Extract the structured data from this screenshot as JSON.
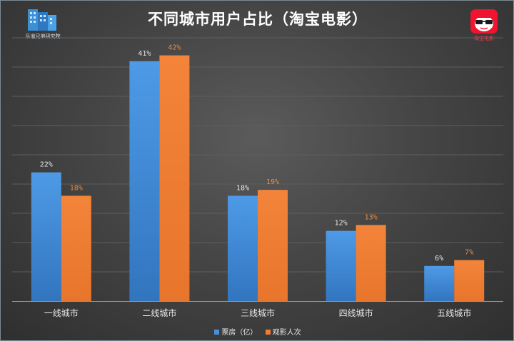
{
  "colors": {
    "series_blue": "#4a90d9",
    "series_orange": "#ef7f35",
    "label_light": "#e6e6e6",
    "label_orange": "#f08a3c"
  },
  "logo_left": {
    "icon": "building-logo-icon",
    "text": "乐道兄弟研究院"
  },
  "logo_right": {
    "icon": "taopiaopiao-mascot-icon",
    "text": "淘宝电影"
  },
  "chart_data": {
    "type": "bar",
    "title": "不同城市用户占比（淘宝电影）",
    "categories": [
      "一线城市",
      "二线城市",
      "三线城市",
      "四线城市",
      "五线城市"
    ],
    "series": [
      {
        "name": "票房（亿）",
        "values": [
          22,
          41,
          18,
          12,
          6
        ],
        "labels": [
          "22%",
          "41%",
          "18%",
          "12%",
          "6%"
        ]
      },
      {
        "name": "观影人次",
        "values": [
          18,
          42,
          19,
          13,
          7
        ],
        "labels": [
          "18%",
          "42%",
          "19%",
          "13%",
          "7%"
        ]
      }
    ],
    "ylim": [
      0,
      45
    ],
    "grid": true,
    "y_ticks_shown": false,
    "legend_position": "bottom"
  }
}
